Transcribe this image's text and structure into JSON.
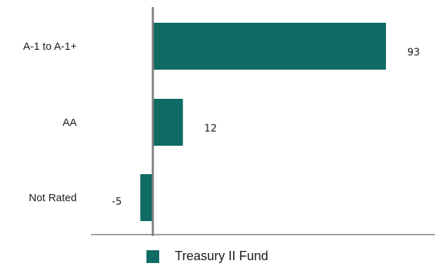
{
  "chart_data": {
    "type": "bar",
    "orientation": "horizontal",
    "categories": [
      "A-1 to A-1+",
      "AA",
      "Not Rated"
    ],
    "series": [
      {
        "name": "Treasury II Fund",
        "values": [
          93,
          12,
          -5
        ],
        "color": "#0f6b63"
      }
    ],
    "data_labels": [
      "93",
      "12",
      "-5"
    ],
    "xlim": [
      -5,
      93
    ],
    "title": "",
    "xlabel": "",
    "ylabel": "",
    "grid": false,
    "legend_position": "bottom"
  },
  "colors": {
    "bar": "#0f6b63",
    "axis": "#7f7f7f",
    "text": "#1a1a1a"
  }
}
